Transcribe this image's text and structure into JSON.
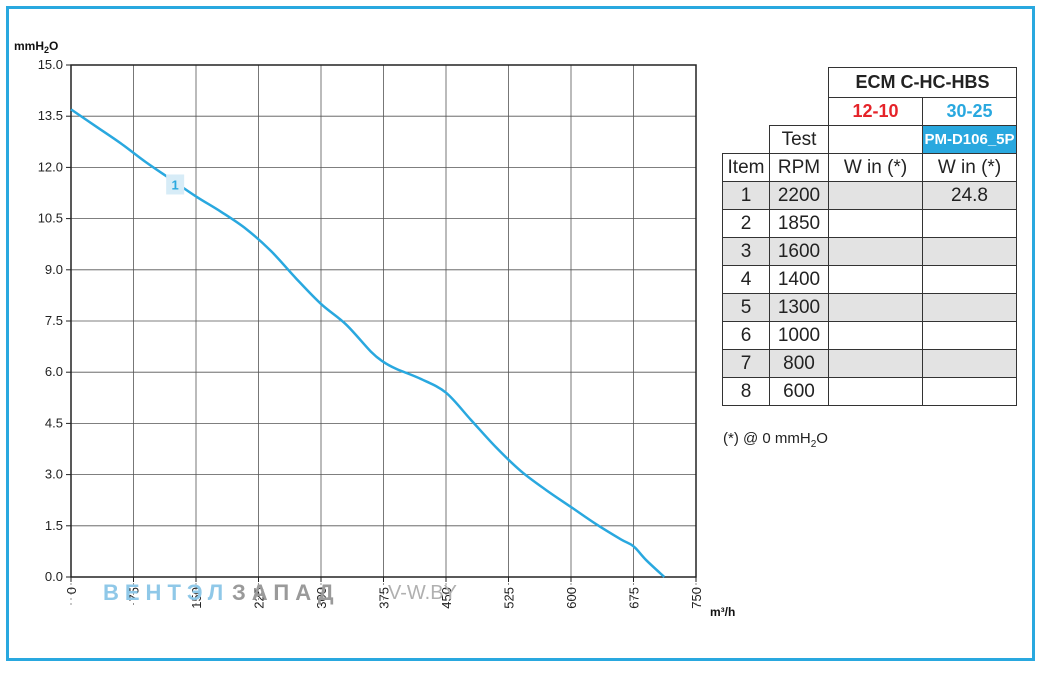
{
  "chart_data": {
    "type": "line",
    "ylabel": "mmH2O",
    "xlabel": "m³/h",
    "xlim": [
      0,
      750
    ],
    "ylim": [
      0,
      15
    ],
    "x_ticks": [
      "0",
      "75",
      "150",
      "225",
      "300",
      "375",
      "450",
      "525",
      "600",
      "675",
      "750"
    ],
    "y_ticks": [
      "0.0",
      "1.5",
      "3.0",
      "4.5",
      "6.0",
      "7.5",
      "9.0",
      "10.5",
      "12.0",
      "13.5",
      "15.0"
    ],
    "grid": true,
    "color": "#29a8df",
    "series": [
      {
        "label": "1",
        "x": [
          0,
          30,
          60,
          90,
          120,
          150,
          180,
          210,
          240,
          270,
          300,
          330,
          360,
          375,
          390,
          420,
          450,
          480,
          510,
          540,
          570,
          600,
          630,
          660,
          675,
          690,
          712
        ],
        "y": [
          13.7,
          13.2,
          12.7,
          12.15,
          11.65,
          11.15,
          10.7,
          10.2,
          9.55,
          8.75,
          8.0,
          7.4,
          6.6,
          6.3,
          6.1,
          5.8,
          5.4,
          4.6,
          3.8,
          3.1,
          2.55,
          2.05,
          1.55,
          1.1,
          0.9,
          0.5,
          0.0
        ]
      }
    ]
  },
  "watermark": {
    "part1": "ВЕНТЭЛ",
    "part2": "ЗАПАД",
    "part3": "V-W.BY"
  },
  "table": {
    "model": "ECM C-HC-HBS",
    "variant_a": "12-10",
    "variant_b": "30-25",
    "code_b": "PM-D106_5P",
    "test_label": "Test",
    "col_item": "Item",
    "col_rpm": "RPM",
    "col_w1": "W in (*)",
    "col_w2": "W in (*)",
    "rows": [
      {
        "item": "1",
        "rpm": "2200",
        "w1": "",
        "w2": "24.8"
      },
      {
        "item": "2",
        "rpm": "1850",
        "w1": "",
        "w2": ""
      },
      {
        "item": "3",
        "rpm": "1600",
        "w1": "",
        "w2": ""
      },
      {
        "item": "4",
        "rpm": "1400",
        "w1": "",
        "w2": ""
      },
      {
        "item": "5",
        "rpm": "1300",
        "w1": "",
        "w2": ""
      },
      {
        "item": "6",
        "rpm": "1000",
        "w1": "",
        "w2": ""
      },
      {
        "item": "7",
        "rpm": "800",
        "w1": "",
        "w2": ""
      },
      {
        "item": "8",
        "rpm": "600",
        "w1": "",
        "w2": ""
      }
    ],
    "footnote_prefix": "(*) @ 0 mmH",
    "footnote_sub": "2",
    "footnote_suffix": "O"
  }
}
